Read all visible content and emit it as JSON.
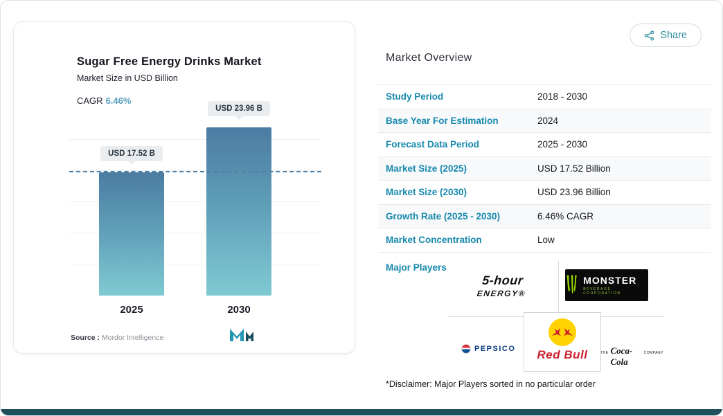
{
  "colors": {
    "accent_link": "#1789ad",
    "cagr_value": "#579fbe",
    "bar_gradient_top": "#4b7ca3",
    "bar_gradient_bottom": "#7fcad2",
    "bottom_bar": "#1d4f5d",
    "monster_green": "#95d600",
    "redbull_red": "#cc1e2c",
    "redbull_yellow": "#ffd200"
  },
  "share": {
    "label": "Share"
  },
  "chart": {
    "title": "Sugar Free Energy Drinks Market",
    "subtitle": "Market Size in USD Billion",
    "cagr_label": "CAGR",
    "cagr_value": "6.46%",
    "source_label": "Source :",
    "source_value": "Mordor Intelligence"
  },
  "chart_data": {
    "type": "bar",
    "title": "Sugar Free Energy Drinks Market",
    "xlabel": "",
    "ylabel": "Market Size in USD Billion",
    "categories": [
      "2025",
      "2030"
    ],
    "values": [
      17.52,
      23.96
    ],
    "value_labels": [
      "USD 17.52 B",
      "USD 23.96 B"
    ],
    "cagr": "6.46%",
    "ylim": [
      0,
      26
    ],
    "grid": true,
    "legend": "none",
    "reference_line": {
      "at": 17.52,
      "style": "dashed"
    }
  },
  "overview": {
    "title": "Market Overview",
    "rows": [
      {
        "label": "Study Period",
        "value": "2018 - 2030"
      },
      {
        "label": "Base Year For Estimation",
        "value": "2024"
      },
      {
        "label": "Forecast Data Period",
        "value": "2025 - 2030"
      },
      {
        "label": "Market Size (2025)",
        "value": "USD 17.52 Billion"
      },
      {
        "label": "Market Size (2030)",
        "value": "USD 23.96 Billion"
      },
      {
        "label": "Growth Rate (2025 - 2030)",
        "value": "6.46% CAGR"
      },
      {
        "label": "Market Concentration",
        "value": "Low"
      }
    ],
    "major_players_label": "Major Players",
    "disclaimer": "*Disclaimer: Major Players sorted in no particular order"
  },
  "players": {
    "five_hour": {
      "line1": "5-hour",
      "line2": "ENERGY®"
    },
    "monster": {
      "name": "MONSTER",
      "sub": "BEVERAGE CORPORATION"
    },
    "pepsico": {
      "name": "PEPSICO"
    },
    "redbull": {
      "name": "Red Bull"
    },
    "cocacola": {
      "pre": "THE",
      "name": "Coca-Cola",
      "post": "COMPANY"
    }
  }
}
